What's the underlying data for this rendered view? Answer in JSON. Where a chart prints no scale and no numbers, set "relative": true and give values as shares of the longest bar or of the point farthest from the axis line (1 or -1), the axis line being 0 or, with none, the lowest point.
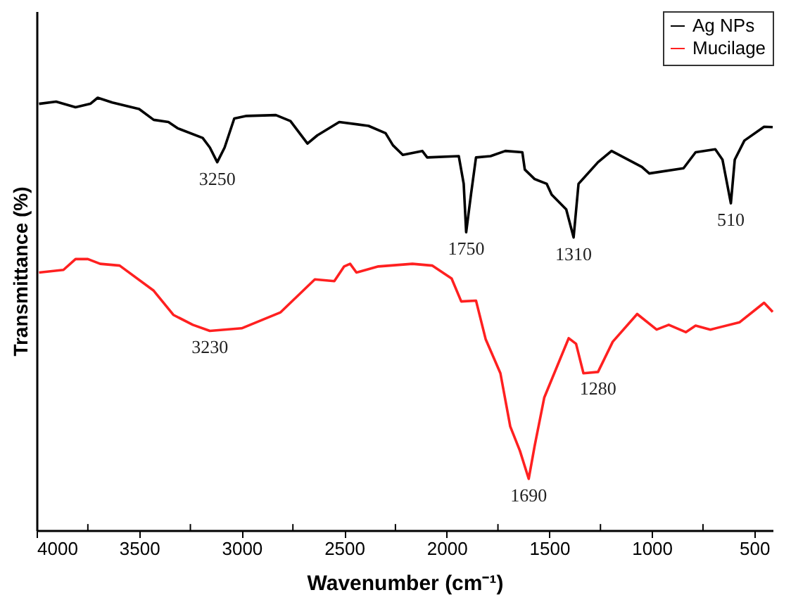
{
  "chart_data": {
    "type": "line",
    "relative": true,
    "xlabel": "Wavenumber (cm⁻¹)",
    "ylabel": "Transmittance (%)",
    "xlim": [
      4000,
      410
    ],
    "xticks": [
      4000,
      {
        "value": 3750,
        "label": null
      },
      3500,
      {
        "value": 3250,
        "label": null
      },
      3000,
      {
        "value": 2750,
        "label": null
      },
      2500,
      {
        "value": 2250,
        "label": null
      },
      2000,
      {
        "value": 1750,
        "label": null
      },
      1500,
      {
        "value": 1250,
        "label": null
      },
      1000,
      {
        "value": 750,
        "label": null
      },
      500
    ],
    "legend": "top right",
    "grid": false,
    "line_style": "solid",
    "series": [
      {
        "name": "Ag NPs",
        "color": "#000000",
        "x": [
          3988,
          3905,
          3810,
          3738,
          3702,
          3631,
          3500,
          3429,
          3357,
          3310,
          3190,
          3155,
          3119,
          3083,
          3036,
          2976,
          2833,
          2762,
          2679,
          2631,
          2524,
          2381,
          2298,
          2262,
          2214,
          2119,
          2095,
          1941,
          1917,
          1905,
          1881,
          1857,
          1786,
          1714,
          1631,
          1619,
          1571,
          1512,
          1488,
          1417,
          1381,
          1357,
          1262,
          1196,
          1048,
          1012,
          845,
          786,
          690,
          655,
          614,
          595,
          548,
          452,
          410
        ],
        "values": [
          0.986,
          0.991,
          0.978,
          0.986,
          1.0,
          0.989,
          0.974,
          0.949,
          0.944,
          0.929,
          0.907,
          0.885,
          0.851,
          0.885,
          0.952,
          0.958,
          0.96,
          0.946,
          0.894,
          0.913,
          0.944,
          0.935,
          0.918,
          0.89,
          0.868,
          0.877,
          0.862,
          0.865,
          0.801,
          0.689,
          0.778,
          0.862,
          0.865,
          0.877,
          0.874,
          0.834,
          0.812,
          0.801,
          0.776,
          0.742,
          0.677,
          0.801,
          0.851,
          0.877,
          0.84,
          0.825,
          0.837,
          0.874,
          0.881,
          0.857,
          0.756,
          0.857,
          0.901,
          0.933,
          0.932
        ]
      },
      {
        "name": "Mucilage",
        "color": "#ff2020",
        "x": [
          3988,
          3869,
          3810,
          3750,
          3690,
          3595,
          3429,
          3333,
          3238,
          3155,
          3000,
          2810,
          2643,
          2548,
          2500,
          2471,
          2440,
          2333,
          2167,
          2071,
          1976,
          1929,
          1857,
          1810,
          1738,
          1690,
          1643,
          1600,
          1571,
          1524,
          1405,
          1369,
          1333,
          1262,
          1190,
          1071,
          976,
          917,
          833,
          786,
          714,
          571,
          452,
          410
        ],
        "values": [
          0.596,
          0.602,
          0.627,
          0.627,
          0.616,
          0.612,
          0.554,
          0.498,
          0.475,
          0.461,
          0.467,
          0.504,
          0.58,
          0.576,
          0.61,
          0.616,
          0.596,
          0.61,
          0.616,
          0.612,
          0.582,
          0.529,
          0.531,
          0.442,
          0.363,
          0.24,
          0.184,
          0.119,
          0.195,
          0.307,
          0.444,
          0.431,
          0.363,
          0.366,
          0.436,
          0.5,
          0.464,
          0.475,
          0.458,
          0.473,
          0.464,
          0.481,
          0.526,
          0.505
        ]
      }
    ],
    "annotations": [
      {
        "text": "3250",
        "x": 3119,
        "y": 0.851
      },
      {
        "text": "1750",
        "x": 1905,
        "y": 0.689
      },
      {
        "text": "1310",
        "x": 1381,
        "y": 0.677
      },
      {
        "text": "510",
        "x": 614,
        "y": 0.756
      },
      {
        "text": "3230",
        "x": 3155,
        "y": 0.461
      },
      {
        "text": "1690",
        "x": 1600,
        "y": 0.119
      },
      {
        "text": "1280",
        "x": 1262,
        "y": 0.366
      }
    ]
  }
}
